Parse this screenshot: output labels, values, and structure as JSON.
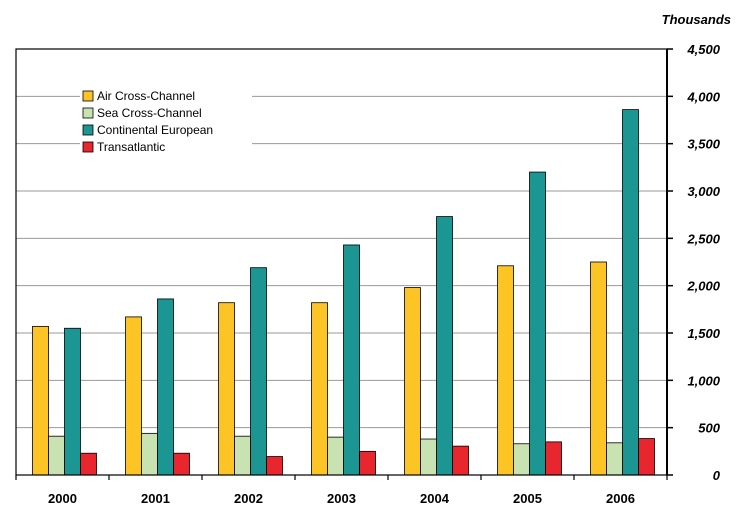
{
  "chart_data": {
    "type": "bar",
    "unit_label": "Thousands",
    "categories": [
      "2000",
      "2001",
      "2002",
      "2003",
      "2004",
      "2005",
      "2006"
    ],
    "series": [
      {
        "name": "Air Cross-Channel",
        "color": "#FDC426",
        "values": [
          1570,
          1670,
          1820,
          1820,
          1980,
          2210,
          2250
        ]
      },
      {
        "name": "Sea Cross-Channel",
        "color": "#C9E2B2",
        "values": [
          410,
          440,
          410,
          400,
          380,
          330,
          340
        ]
      },
      {
        "name": "Continental European",
        "color": "#1C9693",
        "values": [
          1550,
          1860,
          2190,
          2430,
          2730,
          3200,
          3860
        ]
      },
      {
        "name": "Transatlantic",
        "color": "#E8262D",
        "values": [
          230,
          230,
          195,
          250,
          305,
          350,
          385
        ]
      }
    ],
    "ylim": [
      0,
      4500
    ],
    "yticks": [
      "0",
      "500",
      "1,000",
      "1,500",
      "2,000",
      "2,500",
      "3,000",
      "3,500",
      "4,000",
      "4,500"
    ],
    "ytick_values": [
      0,
      500,
      1000,
      1500,
      2000,
      2500,
      3000,
      3500,
      4000,
      4500
    ],
    "y_axis_side": "right",
    "grid": true,
    "legend_position": "top-left"
  }
}
